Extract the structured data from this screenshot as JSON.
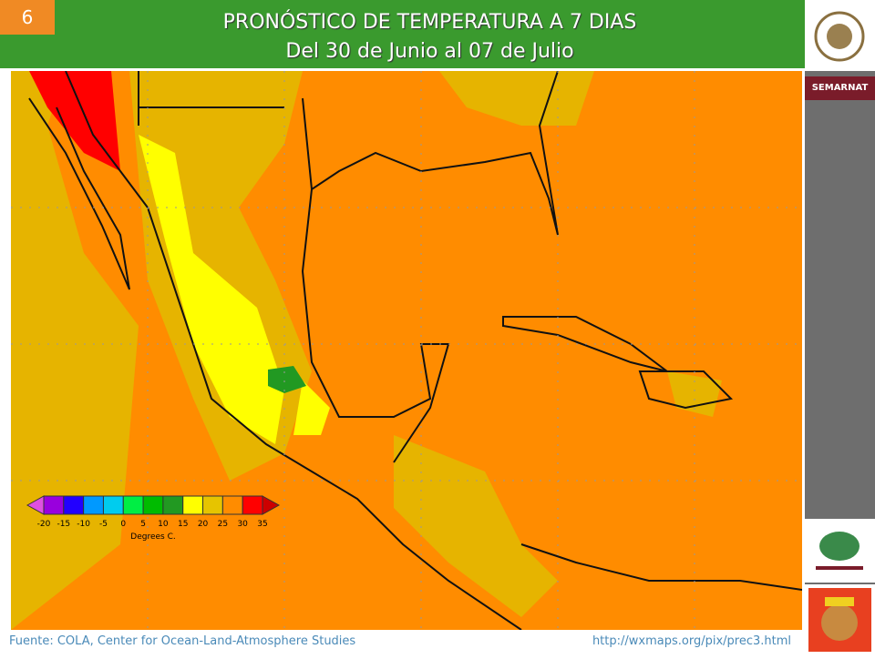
{
  "slide_number": "6",
  "header": {
    "title": "PRONÓSTICO DE TEMPERATURA A 7 DIAS",
    "subtitle": "Del 30 de Junio al 07 de Julio"
  },
  "sidebar": {
    "agency": "SEMARNAT"
  },
  "legend": {
    "labels": [
      "-20",
      "-15",
      "-10",
      "-5",
      "0",
      "5",
      "10",
      "15",
      "20",
      "25",
      "30",
      "35"
    ],
    "under_color": "#e050e0",
    "colors": [
      "#9900dd",
      "#2200ff",
      "#0099ff",
      "#00ccee",
      "#00ee44",
      "#00bb00",
      "#229922",
      "#ffff00",
      "#e6c400",
      "#ff8c00",
      "#ff0000"
    ],
    "over_color": "#cc0000",
    "unit": "Degrees C."
  },
  "footer": {
    "source": "Fuente: COLA, Center  for Ocean-Land-Atmosphere Studies",
    "url": "http://wxmaps.org/pix/prec3.html"
  }
}
